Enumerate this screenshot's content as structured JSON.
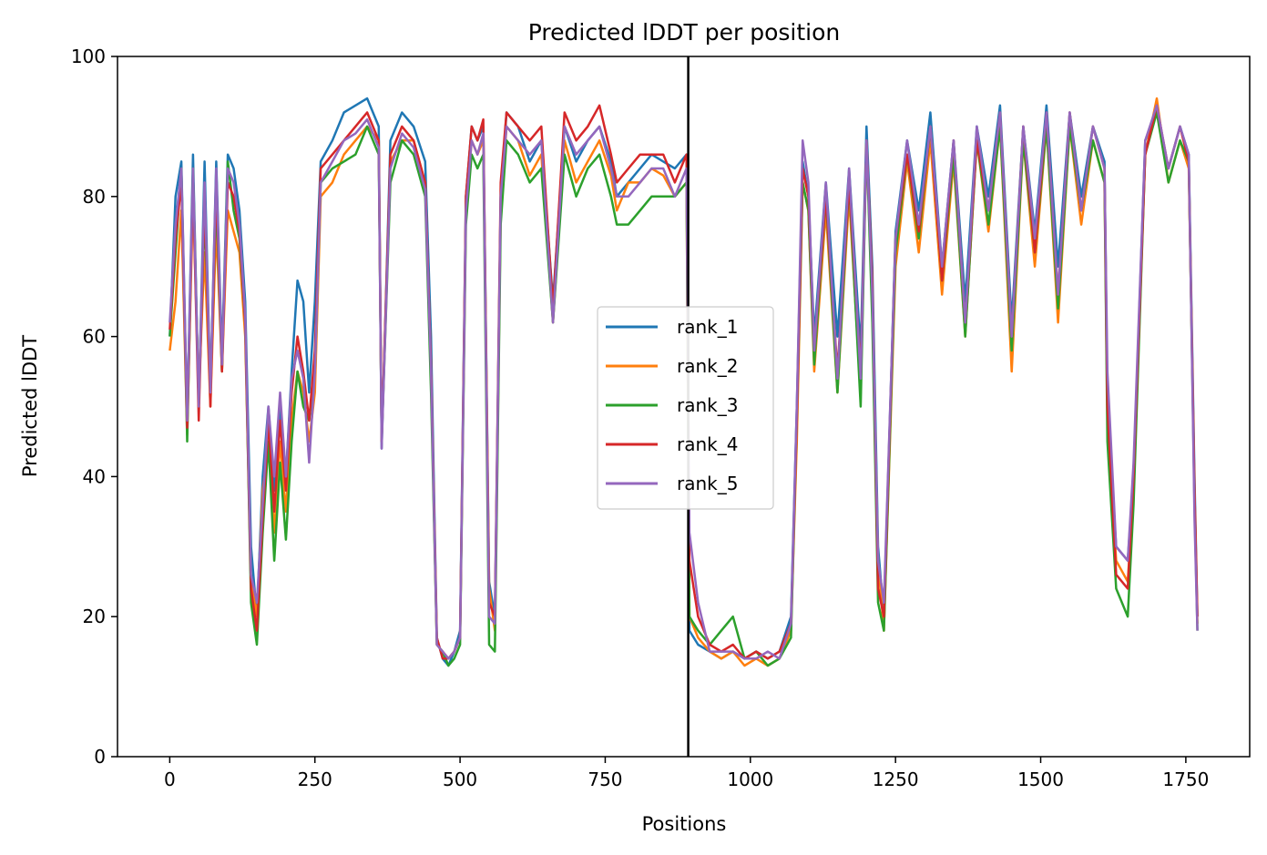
{
  "chart_data": {
    "type": "line",
    "title": "Predicted lDDT per position",
    "xlabel": "Positions",
    "ylabel": "Predicted lDDT",
    "xlim": [
      -90,
      1860
    ],
    "ylim": [
      0,
      100
    ],
    "xticks": [
      0,
      250,
      500,
      750,
      1000,
      1250,
      1500,
      1750
    ],
    "yticks": [
      0,
      20,
      40,
      60,
      80,
      100
    ],
    "grid": false,
    "legend_position": "center",
    "chain_break_x": 893,
    "x": [
      0,
      10,
      20,
      30,
      40,
      50,
      60,
      70,
      80,
      90,
      100,
      110,
      120,
      130,
      140,
      150,
      160,
      170,
      180,
      190,
      200,
      210,
      220,
      230,
      240,
      250,
      260,
      280,
      300,
      320,
      340,
      360,
      365,
      380,
      400,
      420,
      440,
      450,
      460,
      470,
      480,
      490,
      500,
      510,
      520,
      530,
      540,
      550,
      560,
      570,
      580,
      600,
      620,
      640,
      660,
      680,
      700,
      720,
      740,
      760,
      770,
      790,
      810,
      830,
      850,
      870,
      890,
      895,
      910,
      930,
      950,
      970,
      990,
      1010,
      1030,
      1050,
      1070,
      1080,
      1090,
      1100,
      1110,
      1130,
      1150,
      1170,
      1190,
      1200,
      1210,
      1220,
      1230,
      1250,
      1270,
      1290,
      1310,
      1330,
      1350,
      1370,
      1390,
      1410,
      1430,
      1450,
      1470,
      1490,
      1510,
      1530,
      1550,
      1570,
      1590,
      1610,
      1615,
      1630,
      1650,
      1660,
      1680,
      1700,
      1720,
      1740,
      1755,
      1765,
      1770
    ],
    "series": [
      {
        "name": "rank_1",
        "color": "#1f77b4",
        "values": [
          60,
          80,
          85,
          48,
          86,
          50,
          85,
          52,
          85,
          57,
          86,
          84,
          78,
          65,
          30,
          20,
          40,
          50,
          38,
          50,
          40,
          55,
          68,
          65,
          52,
          65,
          85,
          88,
          92,
          93,
          94,
          90,
          44,
          88,
          92,
          90,
          85,
          60,
          17,
          14,
          13,
          15,
          18,
          80,
          90,
          88,
          90,
          25,
          20,
          80,
          92,
          90,
          85,
          88,
          65,
          90,
          85,
          88,
          90,
          85,
          80,
          82,
          84,
          86,
          85,
          84,
          86,
          18,
          16,
          15,
          14,
          15,
          14,
          15,
          14,
          15,
          20,
          50,
          85,
          80,
          60,
          82,
          60,
          84,
          58,
          90,
          70,
          30,
          20,
          75,
          88,
          78,
          92,
          70,
          88,
          65,
          90,
          80,
          93,
          62,
          90,
          75,
          93,
          70,
          92,
          80,
          90,
          85,
          50,
          30,
          28,
          40,
          88,
          92,
          84,
          90,
          86,
          40,
          20
        ]
      },
      {
        "name": "rank_2",
        "color": "#ff7f0e",
        "values": [
          58,
          65,
          78,
          46,
          80,
          52,
          72,
          50,
          76,
          55,
          78,
          75,
          72,
          60,
          25,
          20,
          38,
          45,
          32,
          45,
          35,
          48,
          55,
          52,
          45,
          52,
          80,
          82,
          86,
          88,
          90,
          88,
          45,
          85,
          88,
          88,
          82,
          55,
          16,
          15,
          14,
          15,
          17,
          78,
          88,
          86,
          88,
          24,
          18,
          78,
          90,
          88,
          83,
          86,
          62,
          88,
          82,
          85,
          88,
          83,
          78,
          82,
          82,
          84,
          83,
          80,
          82,
          20,
          17,
          15,
          14,
          15,
          13,
          14,
          13,
          14,
          18,
          45,
          82,
          78,
          55,
          78,
          52,
          80,
          52,
          88,
          65,
          28,
          18,
          70,
          85,
          72,
          88,
          66,
          85,
          60,
          88,
          75,
          90,
          55,
          88,
          70,
          90,
          62,
          90,
          76,
          88,
          82,
          48,
          28,
          25,
          38,
          86,
          94,
          82,
          88,
          84,
          38,
          19
        ]
      },
      {
        "name": "rank_3",
        "color": "#2ca02c",
        "values": [
          60,
          72,
          84,
          45,
          84,
          50,
          78,
          52,
          80,
          55,
          85,
          78,
          74,
          62,
          22,
          16,
          32,
          45,
          28,
          42,
          31,
          45,
          55,
          50,
          48,
          55,
          82,
          84,
          85,
          86,
          90,
          86,
          45,
          82,
          88,
          86,
          80,
          52,
          16,
          15,
          13,
          14,
          16,
          76,
          86,
          84,
          86,
          16,
          15,
          76,
          88,
          86,
          82,
          84,
          62,
          86,
          80,
          84,
          86,
          80,
          76,
          76,
          78,
          80,
          80,
          80,
          82,
          20,
          18,
          16,
          18,
          20,
          14,
          15,
          13,
          14,
          17,
          48,
          82,
          78,
          56,
          80,
          52,
          82,
          50,
          88,
          62,
          22,
          18,
          72,
          86,
          74,
          90,
          68,
          86,
          60,
          88,
          76,
          90,
          58,
          88,
          72,
          90,
          64,
          90,
          78,
          88,
          82,
          45,
          24,
          20,
          36,
          86,
          92,
          82,
          88,
          85,
          36,
          18
        ]
      },
      {
        "name": "rank_4",
        "color": "#d62728",
        "values": [
          61,
          74,
          82,
          47,
          82,
          48,
          80,
          50,
          82,
          55,
          82,
          80,
          75,
          62,
          24,
          18,
          34,
          48,
          35,
          48,
          38,
          52,
          60,
          55,
          48,
          58,
          84,
          86,
          88,
          90,
          92,
          88,
          45,
          86,
          90,
          88,
          82,
          56,
          17,
          14,
          14,
          15,
          17,
          80,
          90,
          88,
          91,
          22,
          20,
          82,
          92,
          90,
          88,
          90,
          64,
          92,
          88,
          90,
          93,
          86,
          82,
          84,
          86,
          86,
          86,
          82,
          86,
          28,
          20,
          16,
          15,
          16,
          14,
          15,
          14,
          15,
          19,
          48,
          84,
          80,
          58,
          80,
          55,
          82,
          55,
          88,
          68,
          24,
          20,
          74,
          86,
          75,
          90,
          68,
          88,
          62,
          88,
          78,
          92,
          60,
          90,
          72,
          92,
          66,
          92,
          78,
          90,
          84,
          50,
          26,
          24,
          40,
          86,
          93,
          84,
          90,
          85,
          38,
          20
        ]
      },
      {
        "name": "rank_5",
        "color": "#9467bd",
        "values": [
          62,
          76,
          84,
          48,
          84,
          50,
          82,
          52,
          84,
          56,
          84,
          82,
          76,
          63,
          26,
          22,
          36,
          50,
          40,
          52,
          40,
          54,
          58,
          54,
          42,
          55,
          82,
          85,
          88,
          89,
          91,
          87,
          44,
          84,
          89,
          87,
          81,
          55,
          16,
          15,
          14,
          15,
          17,
          78,
          88,
          86,
          89,
          20,
          19,
          80,
          90,
          88,
          86,
          88,
          62,
          90,
          86,
          88,
          90,
          84,
          80,
          80,
          82,
          84,
          84,
          80,
          84,
          32,
          22,
          15,
          15,
          15,
          14,
          14,
          15,
          14,
          19,
          50,
          88,
          82,
          58,
          82,
          54,
          84,
          54,
          88,
          66,
          28,
          22,
          74,
          88,
          76,
          90,
          70,
          88,
          62,
          90,
          78,
          92,
          60,
          90,
          74,
          92,
          66,
          92,
          78,
          90,
          84,
          55,
          30,
          28,
          42,
          88,
          93,
          84,
          90,
          86,
          34,
          18
        ]
      }
    ]
  }
}
